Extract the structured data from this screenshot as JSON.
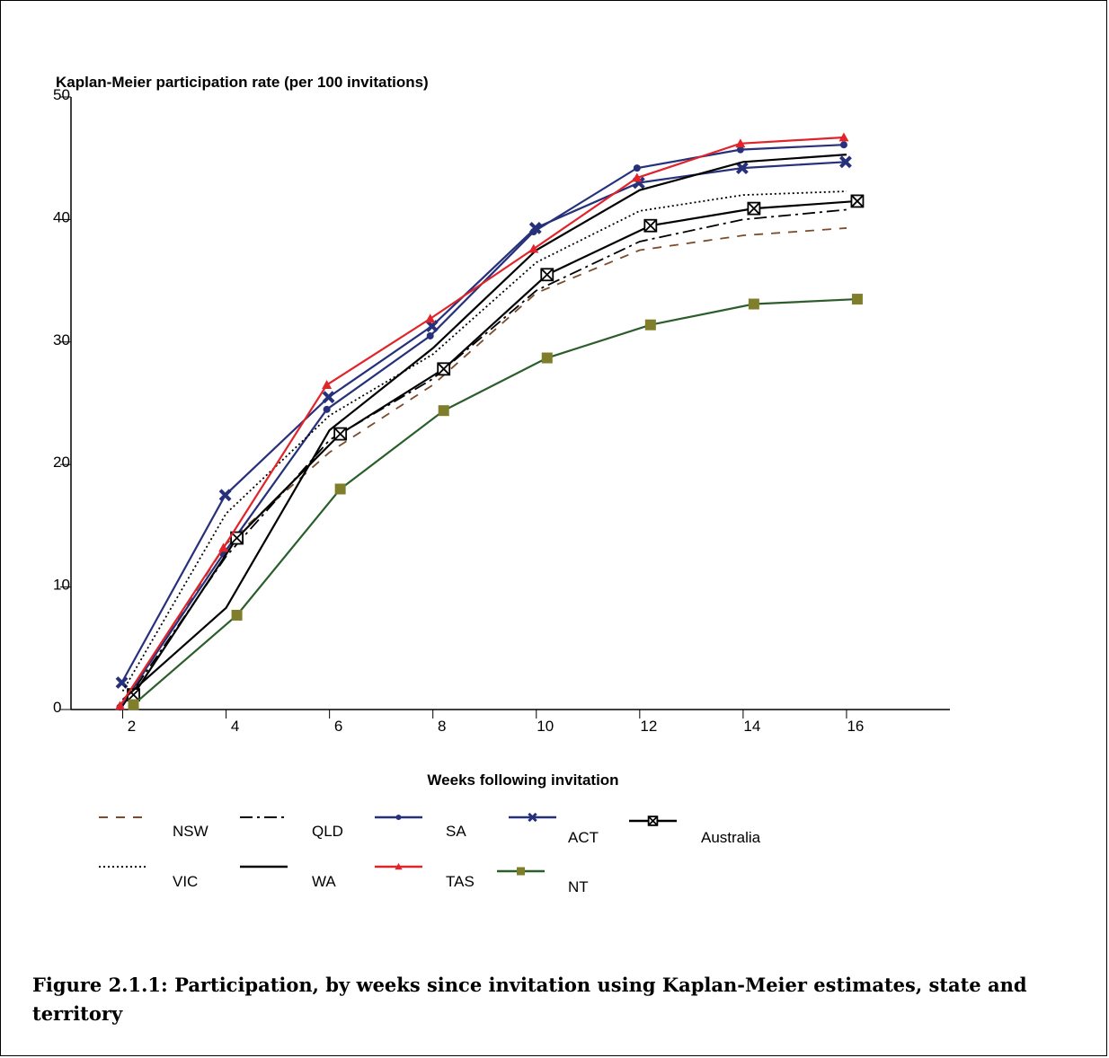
{
  "chart_data": {
    "type": "line",
    "title": "Kaplan-Meier participation rate (per 100 invitations)",
    "xlabel": "Weeks following invitation",
    "ylabel": "",
    "x": [
      2,
      4,
      6,
      8,
      10,
      12,
      14,
      16
    ],
    "xlim": [
      1,
      18
    ],
    "ylim": [
      0,
      50
    ],
    "x_ticks": [
      "2",
      "4",
      "6",
      "8",
      "10",
      "12",
      "14",
      "16"
    ],
    "y_ticks": [
      "0",
      "10",
      "20",
      "30",
      "40",
      "50"
    ],
    "grid": false,
    "legend_position": "bottom",
    "series": [
      {
        "name": "NSW",
        "color": "#7b4b2a",
        "dash": "dashed",
        "marker": "none",
        "values": [
          0.3,
          13.5,
          21.0,
          26.5,
          34.0,
          37.5,
          38.7,
          39.3
        ]
      },
      {
        "name": "QLD",
        "color": "#000000",
        "dash": "dashdot",
        "marker": "none",
        "values": [
          0.3,
          12.5,
          22.0,
          27.0,
          34.2,
          38.2,
          40.0,
          40.8
        ]
      },
      {
        "name": "SA",
        "color": "#27307a",
        "dash": "solid",
        "marker": "dot",
        "values": [
          0.2,
          12.7,
          24.5,
          30.5,
          39.0,
          44.2,
          45.7,
          46.1
        ]
      },
      {
        "name": "ACT",
        "color": "#27307a",
        "dash": "solid",
        "marker": "x",
        "values": [
          2.2,
          17.5,
          25.5,
          31.3,
          39.3,
          43.0,
          44.2,
          44.7
        ]
      },
      {
        "name": "Australia",
        "color": "#000000",
        "dash": "solid",
        "marker": "boxx",
        "values": [
          1.2,
          14.0,
          22.5,
          27.8,
          35.5,
          39.5,
          40.9,
          41.5
        ]
      },
      {
        "name": "VIC",
        "color": "#000000",
        "dash": "dotted",
        "marker": "none",
        "values": [
          1.5,
          16.0,
          24.0,
          29.0,
          36.5,
          40.7,
          42.0,
          42.3
        ]
      },
      {
        "name": "WA",
        "color": "#000000",
        "dash": "solid",
        "marker": "none",
        "values": [
          0.8,
          8.3,
          22.8,
          29.5,
          37.5,
          42.4,
          44.7,
          45.3
        ]
      },
      {
        "name": "TAS",
        "color": "#e1242a",
        "dash": "solid",
        "marker": "triangle",
        "values": [
          0.3,
          13.2,
          26.5,
          31.9,
          37.6,
          43.4,
          46.2,
          46.7
        ]
      },
      {
        "name": "NT",
        "color": "#2b5e2b",
        "marker_color": "#7f7f2b",
        "dash": "solid",
        "marker": "square",
        "values": [
          0.4,
          7.7,
          18.0,
          24.4,
          28.7,
          31.4,
          33.1,
          33.5
        ]
      }
    ]
  },
  "caption": "Figure 2.1.1: Participation, by weeks since invitation using Kaplan-Meier estimates, state and territory"
}
